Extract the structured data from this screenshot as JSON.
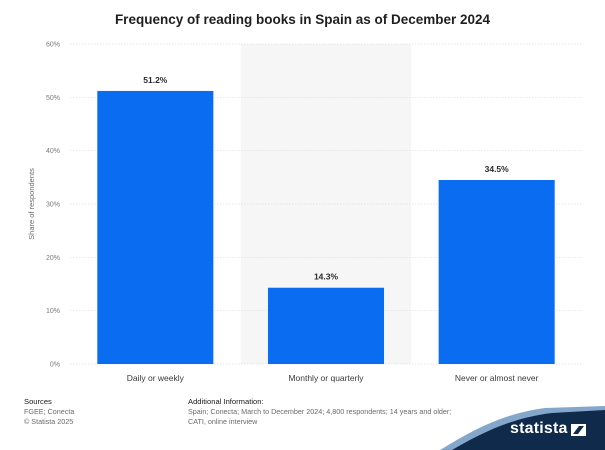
{
  "chart_data": {
    "type": "bar",
    "title": "Frequency of reading books in Spain as of December 2024",
    "ylabel": "Share of respondents",
    "categories": [
      "Daily or weekly",
      "Monthly or quarterly",
      "Never or almost never"
    ],
    "values": [
      51.2,
      14.3,
      34.5
    ],
    "value_labels": [
      "51.2%",
      "14.3%",
      "34.5%"
    ],
    "ylim": [
      0,
      60
    ],
    "yticks": [
      0,
      10,
      20,
      30,
      40,
      50,
      60
    ],
    "ytick_labels": [
      "0%",
      "10%",
      "20%",
      "30%",
      "40%",
      "50%",
      "60%"
    ],
    "grid": true,
    "highlighted_category_index": 1
  },
  "colors": {
    "bar": "#0a6cf0",
    "highlight_band": "#f6f6f6",
    "grid": "#dcdcdc",
    "brand": "#0f2a4a",
    "brand_wave": "#1f5c9e"
  },
  "footer": {
    "sources_heading": "Sources",
    "sources_line1": "FGEE; Conecta",
    "sources_line2": "© Statista 2025",
    "info_heading": "Additional Information:",
    "info_text": "Spain; Conecta; March to December 2024; 4,800 respondents; 14 years and older; CATI, online interview"
  },
  "brand": {
    "name": "statista",
    "icon": "statista-logo-icon"
  }
}
